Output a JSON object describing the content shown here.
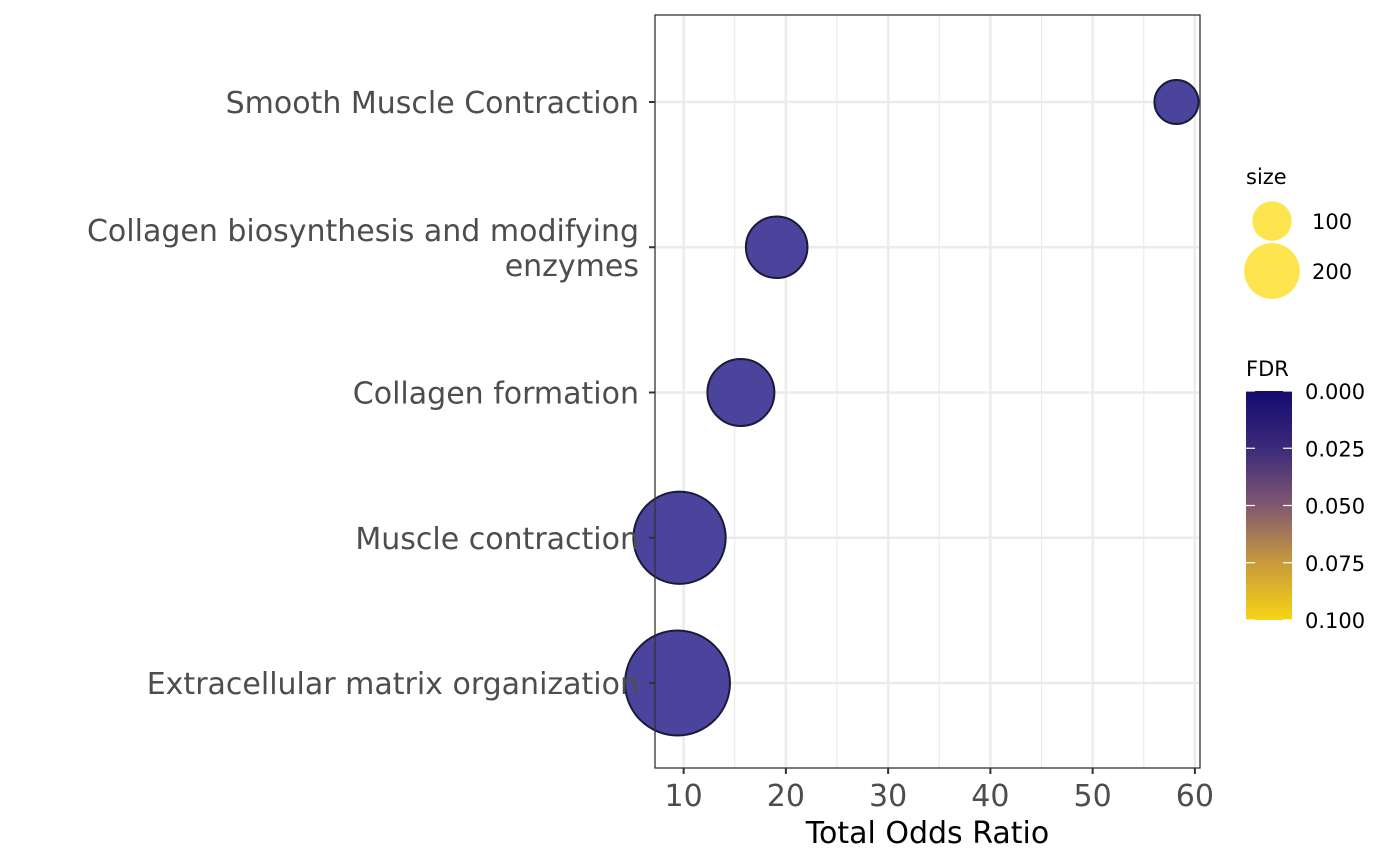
{
  "chart_data": {
    "type": "scatter",
    "xlabel": "Total Odds Ratio",
    "ylabel": "",
    "xlim": [
      7.2,
      60.5
    ],
    "x_ticks": [
      10,
      20,
      30,
      40,
      50,
      60
    ],
    "x_tick_labels": [
      "10",
      "20",
      "30",
      "40",
      "50",
      "60"
    ],
    "categories": [
      [
        "Smooth Muscle Contraction"
      ],
      [
        "Collagen biosynthesis and modifying",
        "enzymes"
      ],
      [
        "Collagen formation"
      ],
      [
        "Muscle contraction"
      ],
      [
        "Extracellular matrix organization"
      ]
    ],
    "points": [
      {
        "category_index": 0,
        "x": 58.2,
        "size": 42,
        "fdr": 0.0001
      },
      {
        "category_index": 1,
        "x": 19.1,
        "size": 82,
        "fdr": 0.0002
      },
      {
        "category_index": 2,
        "x": 15.6,
        "size": 97,
        "fdr": 0.0001
      },
      {
        "category_index": 3,
        "x": 9.6,
        "size": 184,
        "fdr": 0.0
      },
      {
        "category_index": 4,
        "x": 9.4,
        "size": 238,
        "fdr": 0.0
      }
    ],
    "grid": true,
    "size_legend": {
      "title": "size",
      "entries": [
        {
          "value": 100,
          "label": "100"
        },
        {
          "value": 200,
          "label": "200"
        }
      ]
    },
    "color_legend": {
      "title": "FDR",
      "limits": [
        0.0,
        0.1
      ],
      "breaks": [
        0.0,
        0.025,
        0.05,
        0.075,
        0.1
      ],
      "break_labels": [
        "0.000",
        "0.025",
        "0.050",
        "0.075",
        "0.100"
      ],
      "colors": [
        "#150a70",
        "#3b2a7a",
        "#805870",
        "#c89a3c",
        "#f7d415"
      ]
    },
    "point_fill": "#3b3494",
    "point_stroke": "#1a1a3a",
    "size_legend_fill": "#fde030"
  }
}
